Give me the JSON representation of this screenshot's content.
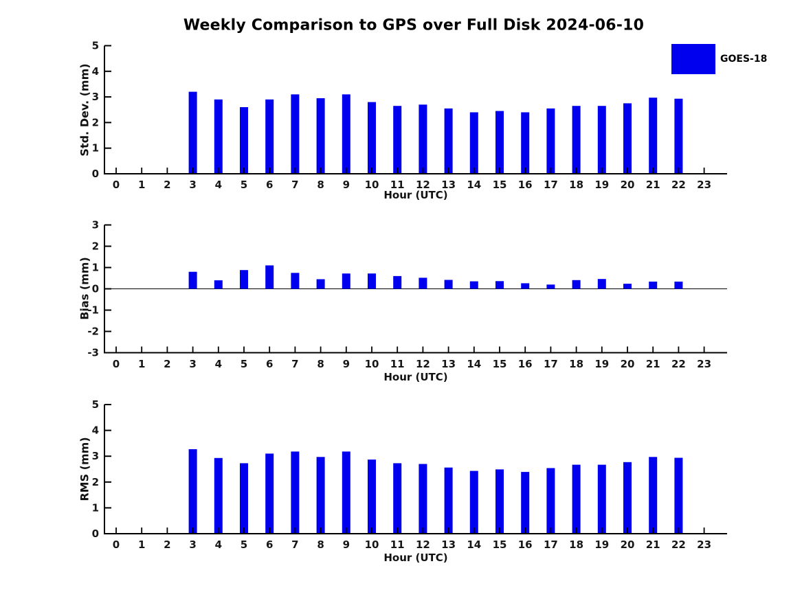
{
  "title": "Weekly Comparison to GPS over Full Disk 2024-06-10",
  "legend": {
    "label": "GOES-18",
    "color": "#0000EE",
    "position": "top-right"
  },
  "chart_data": [
    {
      "type": "bar",
      "ylabel": "Std. Dev. (mm)",
      "xlabel": "Hour (UTC)",
      "categories": [
        0,
        1,
        2,
        3,
        4,
        5,
        6,
        7,
        8,
        9,
        10,
        11,
        12,
        13,
        14,
        15,
        16,
        17,
        18,
        19,
        20,
        21,
        22,
        23
      ],
      "series": [
        {
          "name": "GOES-18",
          "values": [
            null,
            null,
            null,
            3.2,
            2.9,
            2.6,
            2.9,
            3.1,
            2.95,
            3.1,
            2.8,
            2.65,
            2.7,
            2.55,
            2.4,
            2.45,
            2.4,
            2.55,
            2.65,
            2.65,
            2.75,
            2.97,
            2.93,
            null
          ]
        }
      ],
      "ylim": [
        0,
        5
      ],
      "yticks": [
        0,
        1,
        2,
        3,
        4,
        5
      ],
      "grid": false,
      "zero_line": false
    },
    {
      "type": "bar",
      "ylabel": "Bias (mm)",
      "xlabel": "Hour (UTC)",
      "categories": [
        0,
        1,
        2,
        3,
        4,
        5,
        6,
        7,
        8,
        9,
        10,
        11,
        12,
        13,
        14,
        15,
        16,
        17,
        18,
        19,
        20,
        21,
        22,
        23
      ],
      "series": [
        {
          "name": "GOES-18",
          "values": [
            null,
            null,
            null,
            0.8,
            0.4,
            0.88,
            1.1,
            0.75,
            0.45,
            0.72,
            0.72,
            0.6,
            0.52,
            0.42,
            0.35,
            0.36,
            0.26,
            0.2,
            0.41,
            0.46,
            0.24,
            0.34,
            0.34,
            null
          ]
        }
      ],
      "ylim": [
        -3,
        3
      ],
      "yticks": [
        -3,
        -2,
        -1,
        0,
        1,
        2,
        3
      ],
      "grid": false,
      "zero_line": true
    },
    {
      "type": "bar",
      "ylabel": "RMS (mm)",
      "xlabel": "Hour (UTC)",
      "categories": [
        0,
        1,
        2,
        3,
        4,
        5,
        6,
        7,
        8,
        9,
        10,
        11,
        12,
        13,
        14,
        15,
        16,
        17,
        18,
        19,
        20,
        21,
        22,
        23
      ],
      "series": [
        {
          "name": "GOES-18",
          "values": [
            null,
            null,
            null,
            3.27,
            2.93,
            2.73,
            3.1,
            3.18,
            2.97,
            3.18,
            2.87,
            2.73,
            2.7,
            2.56,
            2.43,
            2.49,
            2.39,
            2.54,
            2.67,
            2.67,
            2.77,
            2.97,
            2.94,
            null
          ]
        }
      ],
      "ylim": [
        0,
        5
      ],
      "yticks": [
        0,
        1,
        2,
        3,
        4,
        5
      ],
      "grid": false,
      "zero_line": false
    }
  ]
}
